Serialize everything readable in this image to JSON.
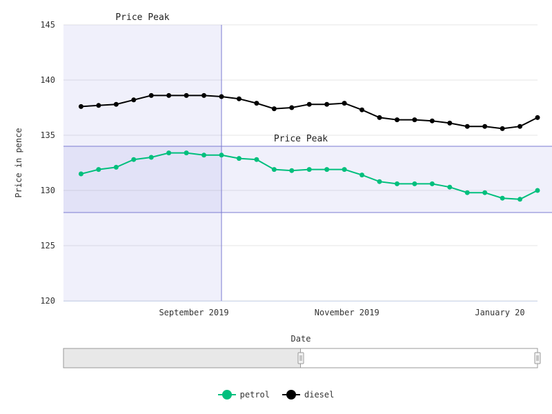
{
  "chart_data": {
    "type": "line",
    "xlabel": "Date",
    "ylabel": "Price in pence",
    "ylim": [
      120,
      145
    ],
    "y_ticks": [
      "120",
      "125",
      "130",
      "135",
      "140",
      "145"
    ],
    "x_ticks": [
      "September 2019",
      "November 2019",
      "January 20"
    ],
    "grid": true,
    "legend_position": "bottom",
    "x": [
      "2019-07-18",
      "2019-07-25",
      "2019-08-01",
      "2019-08-08",
      "2019-08-15",
      "2019-08-22",
      "2019-08-29",
      "2019-09-05",
      "2019-09-12",
      "2019-09-19",
      "2019-09-26",
      "2019-10-03",
      "2019-10-10",
      "2019-10-17",
      "2019-10-24",
      "2019-10-31",
      "2019-11-07",
      "2019-11-14",
      "2019-11-21",
      "2019-11-28",
      "2019-12-05",
      "2019-12-12",
      "2019-12-19",
      "2019-12-26",
      "2020-01-02",
      "2020-01-09",
      "2020-01-16"
    ],
    "series": [
      {
        "name": "petrol",
        "color": "#00bf7d",
        "values": [
          131.5,
          131.9,
          132.1,
          132.8,
          133.0,
          133.4,
          133.4,
          133.2,
          133.2,
          132.9,
          132.8,
          131.9,
          131.8,
          131.9,
          131.9,
          131.9,
          131.4,
          130.8,
          130.6,
          130.6,
          130.6,
          130.3,
          129.8,
          129.8,
          129.3,
          129.2,
          130.0
        ]
      },
      {
        "name": "diesel",
        "color": "#000000",
        "values": [
          137.6,
          137.7,
          137.8,
          138.2,
          138.6,
          138.6,
          138.6,
          138.6,
          138.5,
          138.3,
          137.9,
          137.4,
          137.5,
          137.8,
          137.8,
          137.9,
          137.3,
          136.6,
          136.4,
          136.4,
          136.3,
          136.1,
          135.8,
          135.8,
          135.6,
          135.8,
          136.6
        ]
      }
    ],
    "annotations": [
      {
        "label": "Price Peak",
        "type": "x-band",
        "from": "2019-07-18",
        "to": "2019-09-12"
      },
      {
        "label": "Price Peak",
        "type": "y-band",
        "from": 128,
        "to": 134
      }
    ]
  },
  "navigator": {
    "selection_start": 0.0,
    "selection_end": 0.5
  },
  "colors": {
    "band_fill": "#5b5bd6",
    "band_line": "#7a7ad0",
    "grid": "#e6e6e6",
    "axis": "#ccd6eb"
  }
}
